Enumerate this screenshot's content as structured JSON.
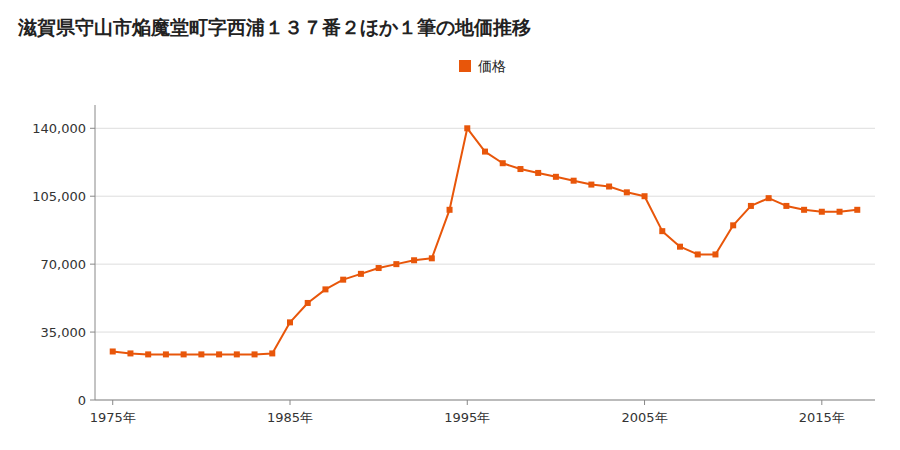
{
  "chart_data": {
    "type": "line",
    "title": "滋賀県守山市焔魔堂町字西浦１３７番２ほか１筆の地価推移",
    "x": [
      1975,
      1976,
      1977,
      1978,
      1979,
      1980,
      1981,
      1982,
      1983,
      1984,
      1985,
      1986,
      1987,
      1988,
      1989,
      1990,
      1991,
      1992,
      1993,
      1994,
      1995,
      1996,
      1997,
      1998,
      1999,
      2000,
      2001,
      2002,
      2003,
      2004,
      2005,
      2006,
      2007,
      2008,
      2009,
      2010,
      2011,
      2012,
      2013,
      2014,
      2015,
      2016,
      2017
    ],
    "series": [
      {
        "name": "価格",
        "color": "#e8560a",
        "marker": "square",
        "line_style": "solid",
        "values": [
          25000,
          24000,
          23500,
          23500,
          23500,
          23500,
          23500,
          23500,
          23500,
          24000,
          40000,
          50000,
          57000,
          62000,
          65000,
          68000,
          70000,
          72000,
          73000,
          98000,
          140000,
          128000,
          122000,
          119000,
          117000,
          115000,
          113000,
          111000,
          110000,
          107000,
          105000,
          87000,
          79000,
          75000,
          75000,
          90000,
          100000,
          104000,
          100000,
          98000,
          97000,
          97000,
          98000
        ]
      }
    ],
    "xlim": [
      1974,
      2018
    ],
    "xticks": [
      {
        "value": 1975,
        "label": "1975年"
      },
      {
        "value": 1985,
        "label": "1985年"
      },
      {
        "value": 1995,
        "label": "1995年"
      },
      {
        "value": 2005,
        "label": "2005年"
      },
      {
        "value": 2015,
        "label": "2015年"
      }
    ],
    "ylim": [
      0,
      152000
    ],
    "yticks": [
      0,
      {
        "value": 35000,
        "label": "35,000"
      },
      {
        "value": 70000,
        "label": "70,000"
      },
      {
        "value": 105000,
        "label": "105,000"
      },
      {
        "value": 140000,
        "label": "140,000"
      }
    ],
    "grid": true,
    "legend": "top"
  }
}
